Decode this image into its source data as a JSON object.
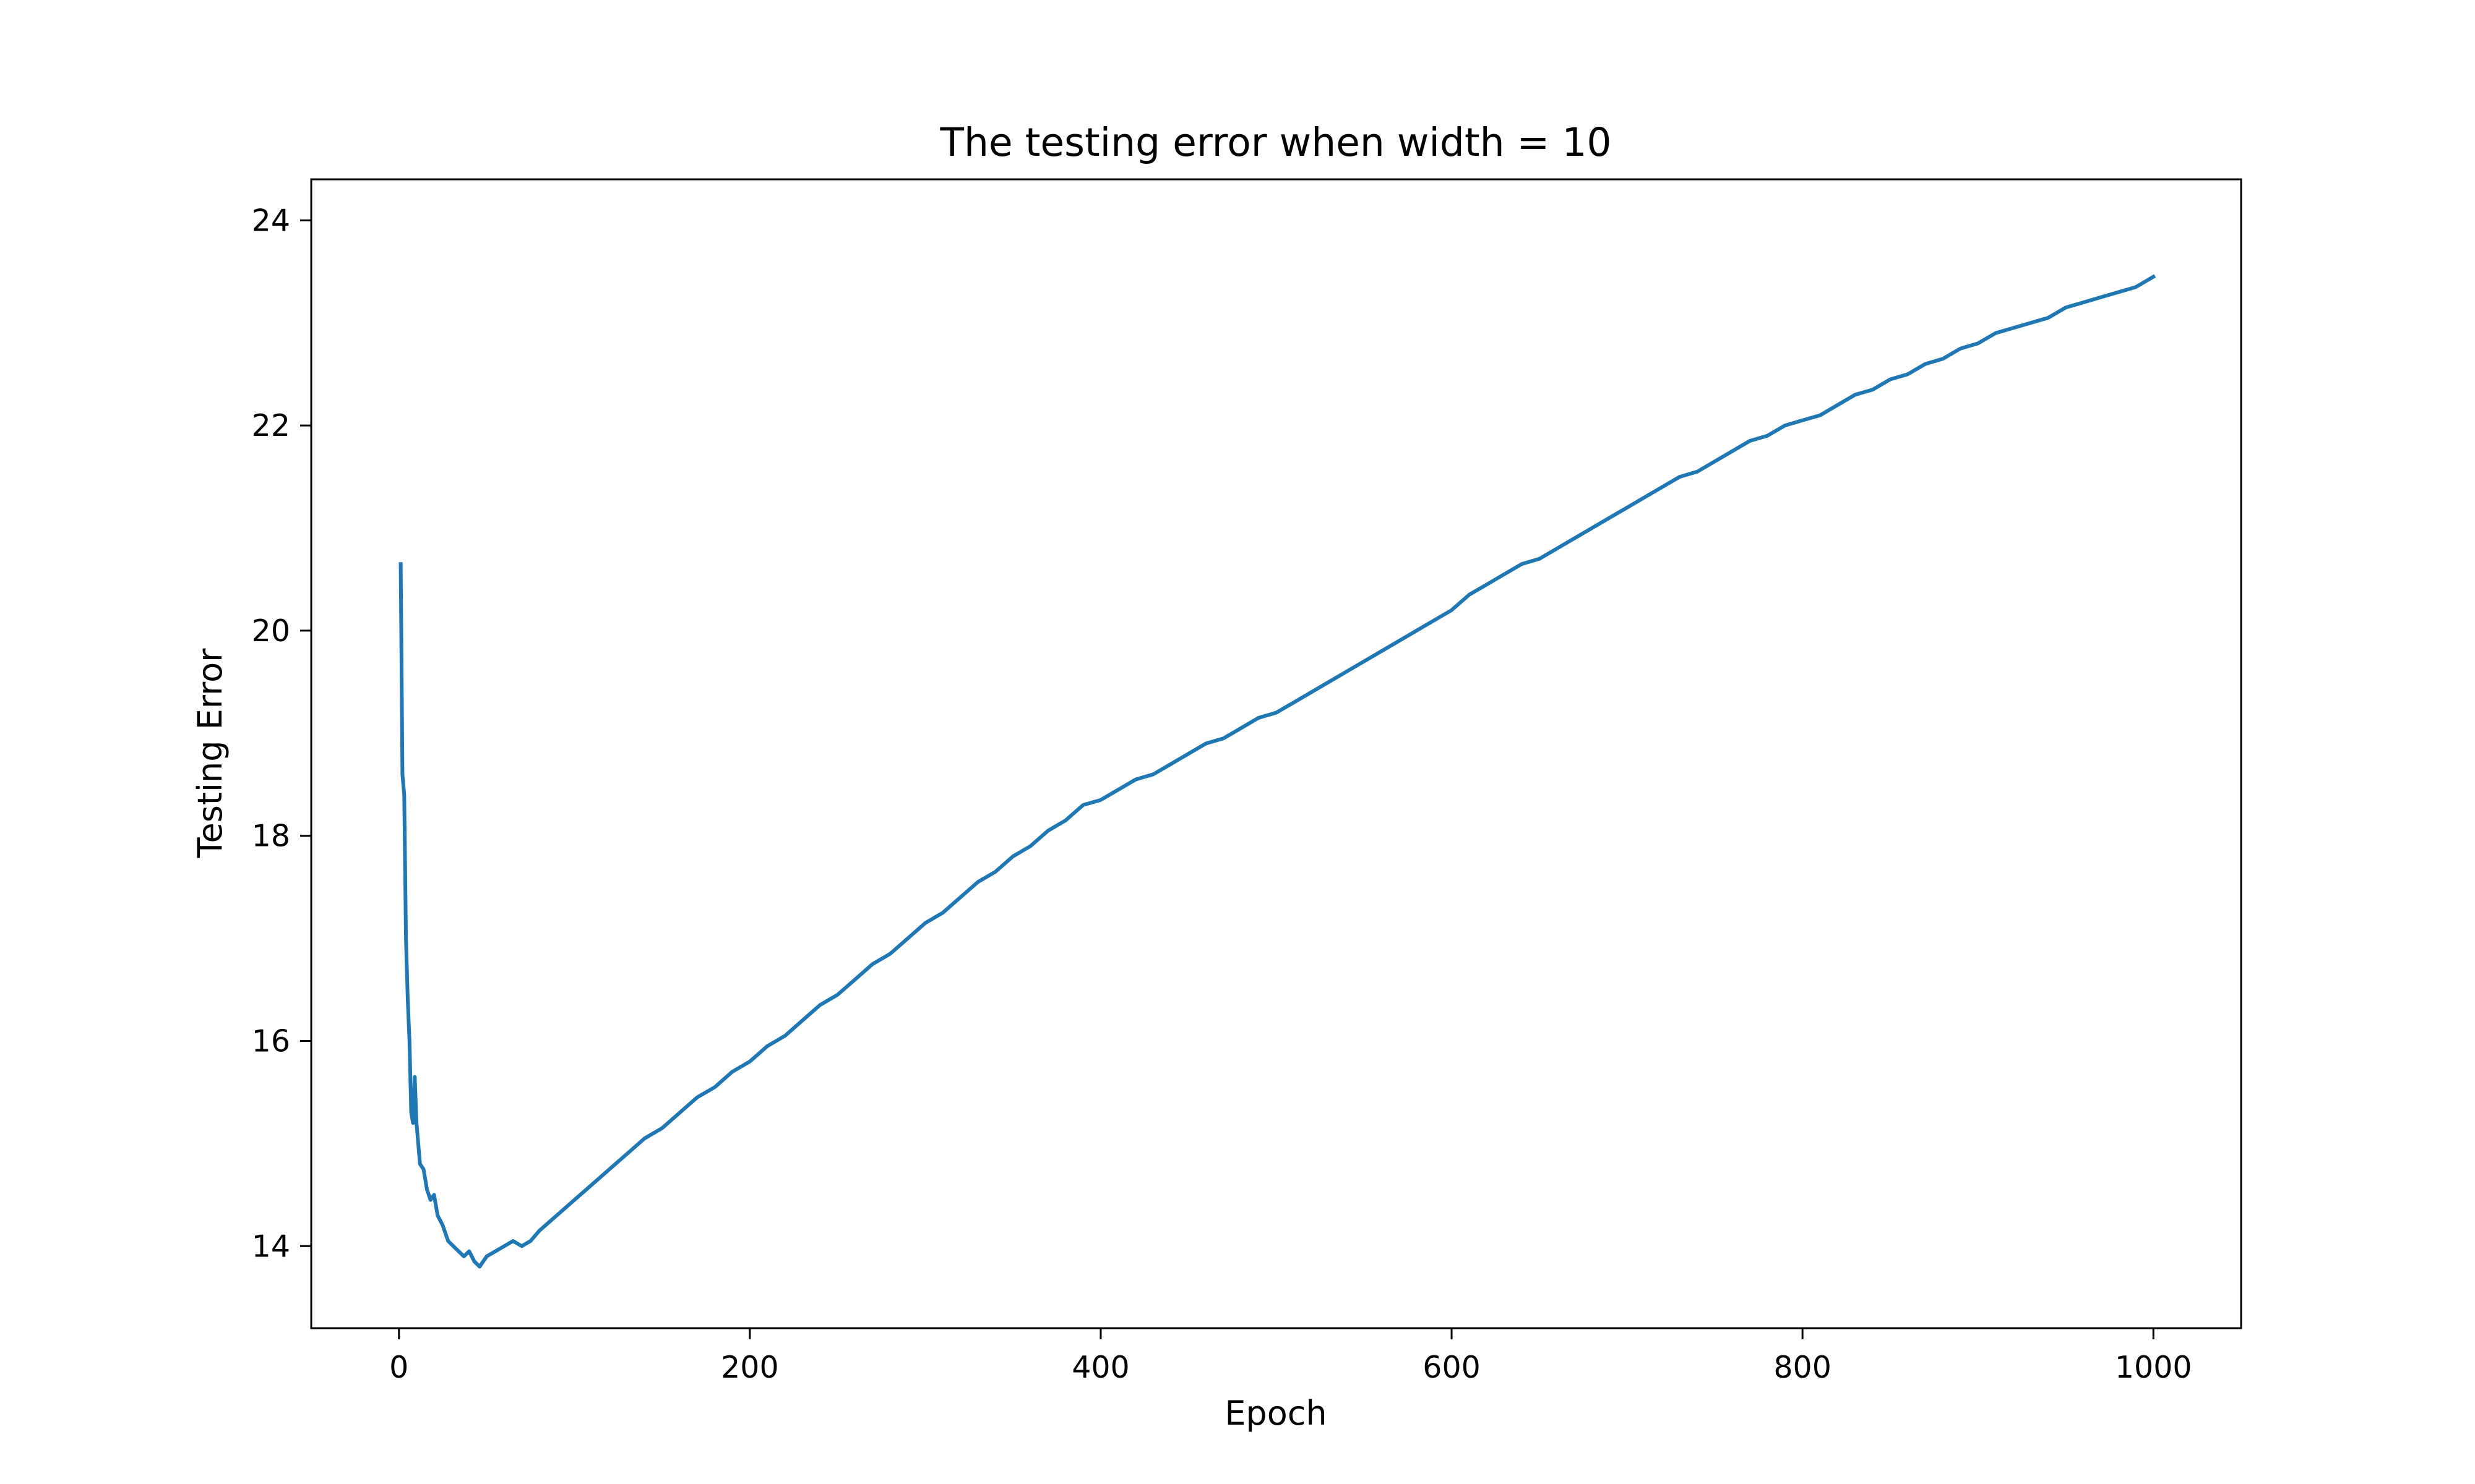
{
  "chart_data": {
    "type": "line",
    "title": "The testing error when width = 10",
    "xlabel": "Epoch",
    "ylabel": "Testing Error",
    "xlim": [
      -50,
      1050
    ],
    "ylim": [
      13.2,
      24.4
    ],
    "xticks": [
      0,
      200,
      400,
      600,
      800,
      1000
    ],
    "yticks": [
      14,
      16,
      18,
      20,
      22,
      24
    ],
    "grid": false,
    "legend": "none",
    "series": [
      {
        "color": "#1f77b4",
        "x": [
          1,
          2,
          3,
          4,
          5,
          6,
          7,
          8,
          9,
          10,
          12,
          14,
          16,
          18,
          20,
          22,
          25,
          28,
          31,
          34,
          37,
          40,
          43,
          46,
          50,
          55,
          60,
          65,
          70,
          75,
          80,
          90,
          100,
          110,
          120,
          130,
          140,
          150,
          160,
          170,
          180,
          190,
          200,
          210,
          220,
          230,
          240,
          250,
          260,
          270,
          280,
          290,
          300,
          310,
          320,
          330,
          340,
          350,
          360,
          370,
          380,
          390,
          400,
          410,
          420,
          430,
          440,
          450,
          460,
          470,
          480,
          490,
          500,
          510,
          520,
          530,
          540,
          550,
          560,
          570,
          580,
          590,
          600,
          610,
          620,
          630,
          640,
          650,
          660,
          670,
          680,
          690,
          700,
          710,
          720,
          730,
          740,
          750,
          760,
          770,
          780,
          790,
          800,
          810,
          820,
          830,
          840,
          850,
          860,
          870,
          880,
          890,
          900,
          910,
          920,
          930,
          940,
          950,
          960,
          970,
          980,
          990,
          1000
        ],
        "values": [
          20.65,
          18.6,
          18.4,
          17.0,
          16.4,
          16.0,
          15.3,
          15.2,
          15.65,
          15.2,
          14.8,
          14.75,
          14.55,
          14.45,
          14.5,
          14.3,
          14.2,
          14.05,
          14.0,
          13.95,
          13.9,
          13.95,
          13.85,
          13.8,
          13.9,
          13.95,
          14.0,
          14.05,
          14.0,
          14.05,
          14.15,
          14.3,
          14.45,
          14.6,
          14.75,
          14.9,
          15.05,
          15.15,
          15.3,
          15.45,
          15.55,
          15.7,
          15.8,
          15.95,
          16.05,
          16.2,
          16.35,
          16.45,
          16.6,
          16.75,
          16.85,
          17.0,
          17.15,
          17.25,
          17.4,
          17.55,
          17.65,
          17.8,
          17.9,
          18.05,
          18.15,
          18.3,
          18.35,
          18.45,
          18.55,
          18.6,
          18.7,
          18.8,
          18.9,
          18.95,
          19.05,
          19.15,
          19.2,
          19.3,
          19.4,
          19.5,
          19.6,
          19.7,
          19.8,
          19.9,
          20.0,
          20.1,
          20.2,
          20.35,
          20.45,
          20.55,
          20.65,
          20.7,
          20.8,
          20.9,
          21.0,
          21.1,
          21.2,
          21.3,
          21.4,
          21.5,
          21.55,
          21.65,
          21.75,
          21.85,
          21.9,
          22.0,
          22.05,
          22.1,
          22.2,
          22.3,
          22.35,
          22.45,
          22.5,
          22.6,
          22.65,
          22.75,
          22.8,
          22.9,
          22.95,
          23.0,
          23.05,
          23.15,
          23.2,
          23.25,
          23.3,
          23.35,
          23.45
        ]
      }
    ]
  }
}
